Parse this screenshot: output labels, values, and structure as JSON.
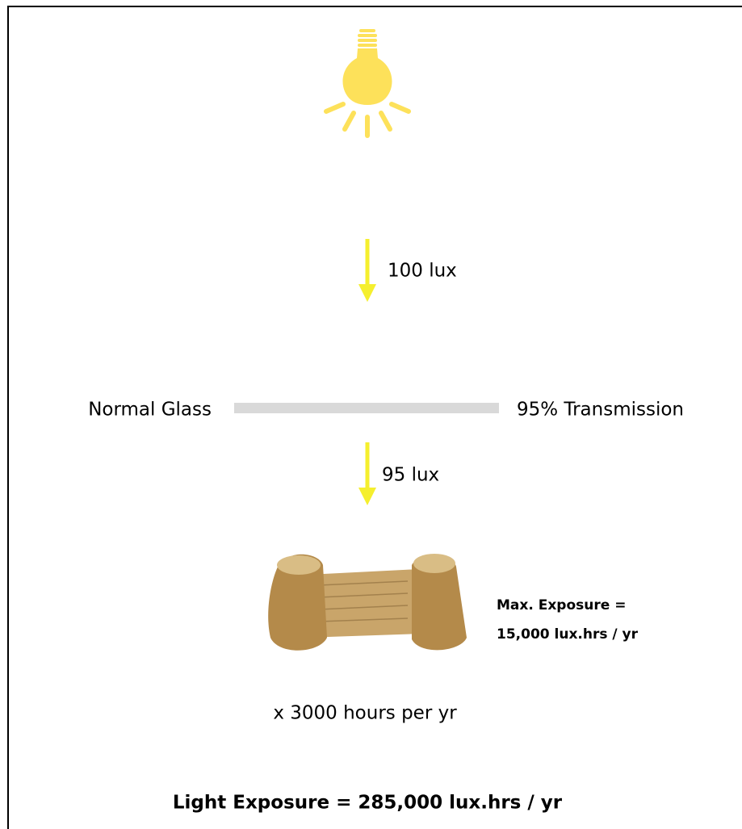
{
  "diagram": {
    "incoming_label": "100 lux",
    "glass_label": "Normal Glass",
    "transmission_label": "95% Transmission",
    "transmitted_label": "95 lux",
    "max_exposure": [
      "Max. Exposure =",
      "15,000 lux.hrs / yr"
    ],
    "hours_label": "x 3000 hours per yr",
    "result_label": "Light Exposure = 285,000 lux.hrs / yr"
  }
}
